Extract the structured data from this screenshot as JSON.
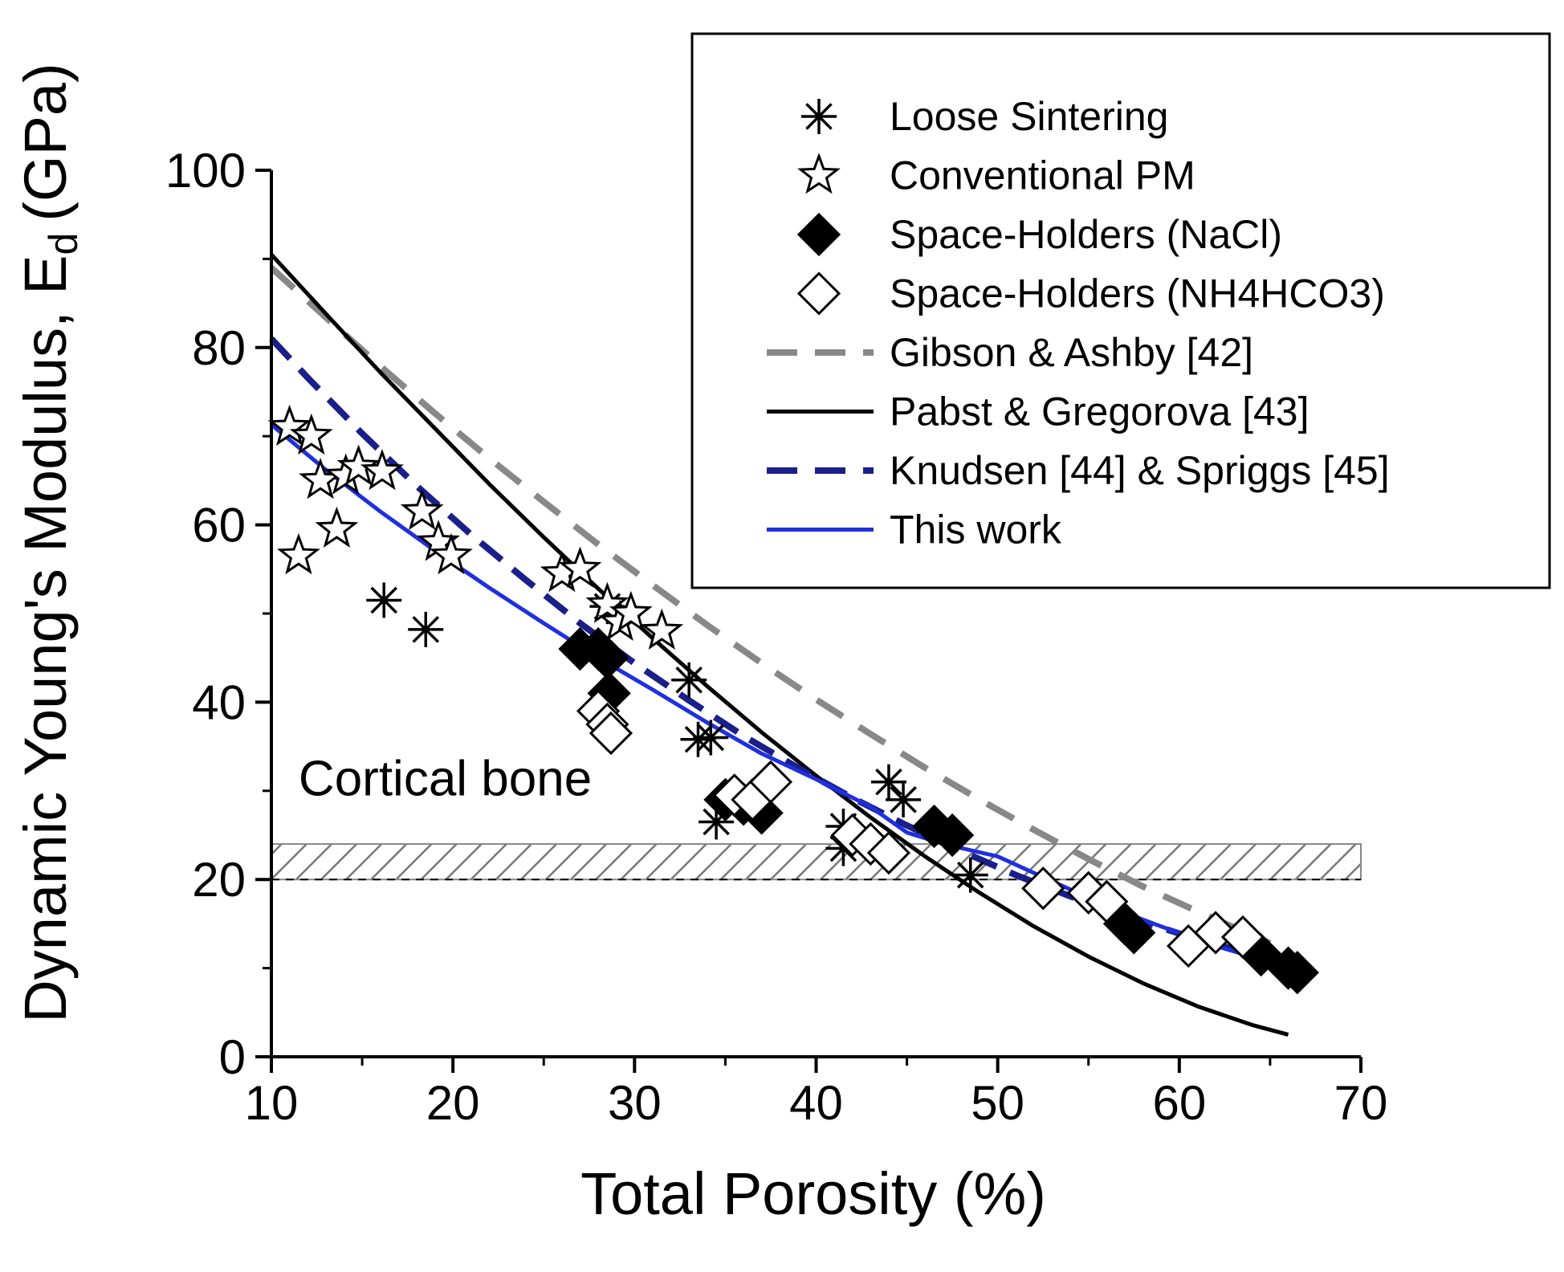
{
  "chart_data": {
    "type": "scatter",
    "title": "",
    "xlabel": "Total Porosity (%)",
    "ylabel": "Dynamic Young's Modulus, E",
    "ylabel_subscript": "d",
    "ylabel_unit": "(GPa)",
    "xlim": [
      10,
      70
    ],
    "ylim": [
      0,
      100
    ],
    "x_ticks": [
      10,
      20,
      30,
      40,
      50,
      60,
      70
    ],
    "y_ticks": [
      0,
      20,
      40,
      60,
      80,
      100
    ],
    "x_tick_labels": [
      "10",
      "20",
      "30",
      "40",
      "50",
      "60",
      "70"
    ],
    "y_tick_labels": [
      "0",
      "20",
      "40",
      "60",
      "80",
      "100"
    ],
    "grid": false,
    "legend_position": "top-right",
    "annotations": [
      {
        "text": "Cortical bone",
        "x": 11.5,
        "y": 29.5
      },
      {
        "type": "band",
        "label": "cortical-bone-band",
        "y_range": [
          20,
          24
        ],
        "x_range": [
          10,
          70
        ]
      }
    ],
    "scatter_series": [
      {
        "name": "Loose Sintering",
        "marker": "asterisk",
        "points": [
          [
            16.2,
            51.5
          ],
          [
            18.5,
            48.2
          ],
          [
            28.5,
            50.8
          ],
          [
            33,
            42.5
          ],
          [
            33.5,
            35.8
          ],
          [
            34.2,
            36
          ],
          [
            34.5,
            26.5
          ],
          [
            41.5,
            26
          ],
          [
            41.5,
            23.5
          ],
          [
            44,
            31
          ],
          [
            44.8,
            29
          ],
          [
            48.5,
            20.5
          ]
        ]
      },
      {
        "name": "Conventional PM",
        "marker": "star-open",
        "points": [
          [
            11,
            71
          ],
          [
            11.5,
            56.5
          ],
          [
            12.2,
            70
          ],
          [
            12.7,
            65
          ],
          [
            13.6,
            59.5
          ],
          [
            14.1,
            65.5
          ],
          [
            14.8,
            66.5
          ],
          [
            16.1,
            66
          ],
          [
            18.3,
            61.5
          ],
          [
            19.2,
            58
          ],
          [
            19.9,
            56.5
          ],
          [
            26,
            54.5
          ],
          [
            27,
            55
          ],
          [
            28.5,
            51
          ],
          [
            29.2,
            49
          ],
          [
            29.8,
            50
          ],
          [
            31.5,
            48
          ]
        ]
      },
      {
        "name": "Space-Holders (NaCl)",
        "marker": "diamond-filled",
        "points": [
          [
            27,
            46
          ],
          [
            28,
            46
          ],
          [
            28.5,
            45
          ],
          [
            28.6,
            41
          ],
          [
            35,
            29
          ],
          [
            36,
            28.5
          ],
          [
            37,
            27.5
          ],
          [
            46.5,
            26
          ],
          [
            47.5,
            25
          ],
          [
            57,
            15
          ],
          [
            57.5,
            14
          ],
          [
            64.5,
            11.5
          ],
          [
            66,
            10
          ],
          [
            66.5,
            9.5
          ]
        ]
      },
      {
        "name": "Space-Holders (NH4HCO3)",
        "marker": "diamond-open",
        "points": [
          [
            28,
            39
          ],
          [
            28.5,
            37.5
          ],
          [
            28.7,
            36.5
          ],
          [
            35.5,
            29.5
          ],
          [
            36.5,
            29
          ],
          [
            37.5,
            31
          ],
          [
            42,
            25
          ],
          [
            43,
            24
          ],
          [
            44,
            23
          ],
          [
            52.5,
            19
          ],
          [
            55,
            18.5
          ],
          [
            56,
            17.5
          ],
          [
            60.5,
            12.5
          ],
          [
            62,
            14
          ],
          [
            63.5,
            13.5
          ]
        ]
      }
    ],
    "line_series": [
      {
        "name": "Gibson & Ashby [42]",
        "style": "dashed",
        "color": "#888888",
        "x": [
          10,
          13,
          16,
          19,
          22,
          25,
          28,
          31,
          34,
          37,
          40,
          43,
          46,
          49,
          52,
          55,
          58,
          61,
          64,
          65
        ],
        "y": [
          89,
          83.4,
          77.9,
          72.6,
          67.5,
          62.6,
          57.8,
          53.2,
          48.7,
          44.4,
          40.3,
          36.4,
          32.6,
          29.0,
          25.6,
          22.3,
          19.2,
          16.4,
          13.7,
          12.8
        ]
      },
      {
        "name": "Pabst & Gregorova [43]",
        "style": "solid",
        "color": "#000000",
        "x": [
          10,
          13,
          16,
          19,
          22,
          25,
          28,
          31,
          34,
          37,
          40,
          43,
          46,
          49,
          52,
          55,
          58,
          61,
          64,
          66
        ],
        "y": [
          90.5,
          83.8,
          77.2,
          70.9,
          64.6,
          58.6,
          52.8,
          47.2,
          41.8,
          36.6,
          31.7,
          27.0,
          22.6,
          18.5,
          14.7,
          11.3,
          8.3,
          5.7,
          3.6,
          2.5
        ]
      },
      {
        "name": "Knudsen [44] & Spriggs [45]",
        "style": "dashed",
        "color": "#1a1f8a",
        "x": [
          10,
          12,
          15,
          18,
          21,
          24,
          27,
          30,
          33,
          36,
          39,
          42,
          45,
          48,
          51,
          54,
          57,
          60,
          63,
          66
        ],
        "y": [
          81,
          76.6,
          70.3,
          64.4,
          58.9,
          53.8,
          48.9,
          44.4,
          40.2,
          36.2,
          32.6,
          29.2,
          26.1,
          23.2,
          20.5,
          18.1,
          15.9,
          13.9,
          12.1,
          10.5
        ]
      },
      {
        "name": "This work",
        "style": "solid",
        "color": "#1f2fe0",
        "x": [
          10,
          13,
          16,
          19,
          22,
          25,
          28,
          31,
          34,
          37,
          40,
          43,
          45,
          47,
          50,
          53,
          56,
          59,
          62,
          65,
          66
        ],
        "y": [
          71.3,
          66.2,
          61.5,
          57.1,
          52.9,
          48.9,
          45.0,
          41.4,
          37.7,
          34.2,
          31.3,
          28.2,
          25.3,
          24.0,
          22.6,
          19.8,
          17.0,
          14.7,
          12.5,
          10.7,
          10.0
        ]
      }
    ]
  },
  "legend": {
    "items": [
      {
        "label": "Loose Sintering",
        "kind": "marker",
        "marker": "asterisk"
      },
      {
        "label": "Conventional PM",
        "kind": "marker",
        "marker": "star-open"
      },
      {
        "label": "Space-Holders (NaCl)",
        "kind": "marker",
        "marker": "diamond-filled"
      },
      {
        "label": "Space-Holders (NH4HCO3)",
        "kind": "marker",
        "marker": "diamond-open"
      },
      {
        "label": "Gibson & Ashby [42]",
        "kind": "line",
        "style": "dashed",
        "color": "#888888"
      },
      {
        "label": "Pabst & Gregorova [43]",
        "kind": "line",
        "style": "solid",
        "color": "#000000"
      },
      {
        "label": "Knudsen [44] & Spriggs [45]",
        "kind": "line",
        "style": "dashed",
        "color": "#1a1f8a"
      },
      {
        "label": "This work",
        "kind": "line",
        "style": "solid",
        "color": "#1f2fe0"
      }
    ]
  }
}
